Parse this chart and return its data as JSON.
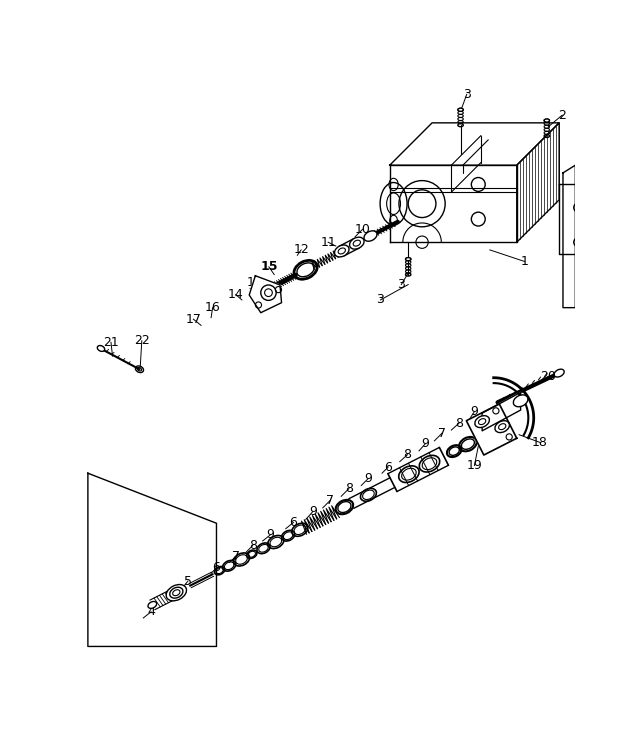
{
  "bg_color": "#ffffff",
  "line_color": "#000000",
  "figsize": [
    6.41,
    7.35
  ],
  "dpi": 100
}
